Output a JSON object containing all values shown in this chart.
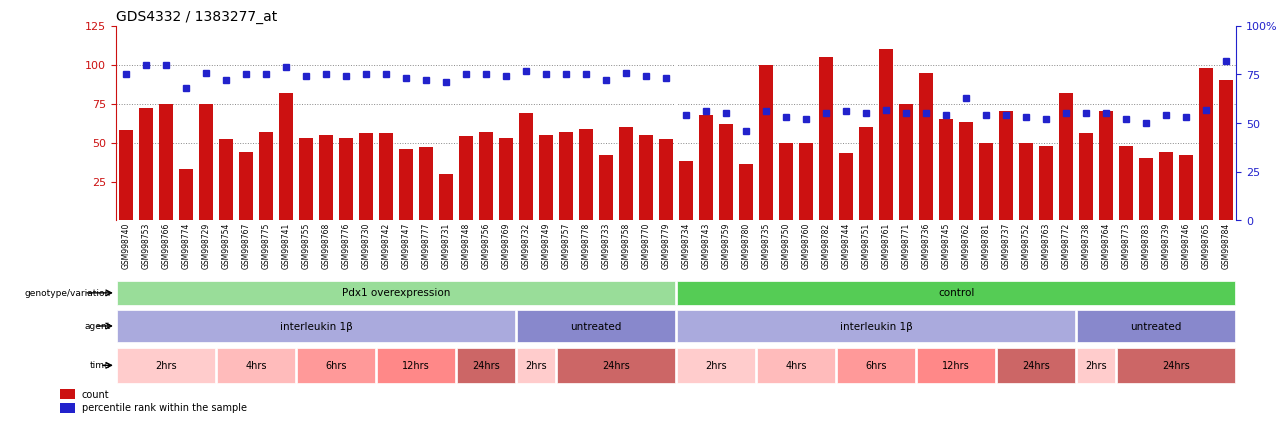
{
  "title": "GDS4332 / 1383277_at",
  "samples": [
    "GSM998740",
    "GSM998753",
    "GSM998766",
    "GSM998774",
    "GSM998729",
    "GSM998754",
    "GSM998767",
    "GSM998775",
    "GSM998741",
    "GSM998755",
    "GSM998768",
    "GSM998776",
    "GSM998730",
    "GSM998742",
    "GSM998747",
    "GSM998777",
    "GSM998731",
    "GSM998748",
    "GSM998756",
    "GSM998769",
    "GSM998732",
    "GSM998749",
    "GSM998757",
    "GSM998778",
    "GSM998733",
    "GSM998758",
    "GSM998770",
    "GSM998779",
    "GSM998734",
    "GSM998743",
    "GSM998759",
    "GSM998780",
    "GSM998735",
    "GSM998750",
    "GSM998760",
    "GSM998782",
    "GSM998744",
    "GSM998751",
    "GSM998761",
    "GSM998771",
    "GSM998736",
    "GSM998745",
    "GSM998762",
    "GSM998781",
    "GSM998737",
    "GSM998752",
    "GSM998763",
    "GSM998772",
    "GSM998738",
    "GSM998764",
    "GSM998773",
    "GSM998783",
    "GSM998739",
    "GSM998746",
    "GSM998765",
    "GSM998784"
  ],
  "counts": [
    58,
    72,
    75,
    33,
    75,
    52,
    44,
    57,
    82,
    53,
    55,
    53,
    56,
    56,
    46,
    47,
    30,
    54,
    57,
    53,
    69,
    55,
    57,
    59,
    42,
    60,
    55,
    52,
    38,
    68,
    62,
    36,
    100,
    50,
    50,
    105,
    43,
    60,
    110,
    75,
    95,
    65,
    63,
    50,
    70,
    50,
    48,
    82,
    56,
    70,
    48,
    40,
    44,
    42,
    98,
    90
  ],
  "percentiles": [
    75,
    80,
    80,
    68,
    76,
    72,
    75,
    75,
    79,
    74,
    75,
    74,
    75,
    75,
    73,
    72,
    71,
    75,
    75,
    74,
    77,
    75,
    75,
    75,
    72,
    76,
    74,
    73,
    54,
    56,
    55,
    46,
    56,
    53,
    52,
    55,
    56,
    55,
    57,
    55,
    55,
    54,
    63,
    54,
    54,
    53,
    52,
    55,
    55,
    55,
    52,
    50,
    54,
    53,
    57,
    82
  ],
  "left_ylim": [
    0,
    125
  ],
  "left_yticks": [
    25,
    50,
    75,
    100,
    125
  ],
  "right_ylim": [
    0,
    100
  ],
  "right_yticks": [
    0,
    25,
    50,
    75,
    100
  ],
  "right_yticklabels": [
    "0",
    "25",
    "50",
    "75",
    "100%"
  ],
  "bar_color": "#CC1111",
  "dot_color": "#2222CC",
  "grid_color": "#888888",
  "background_color": "#ffffff",
  "genotype_groups": [
    {
      "label": "Pdx1 overexpression",
      "start": 0,
      "end": 27,
      "color": "#99DD99"
    },
    {
      "label": "control",
      "start": 28,
      "end": 55,
      "color": "#55CC55"
    }
  ],
  "agent_groups": [
    {
      "label": "interleukin 1β",
      "start": 0,
      "end": 19,
      "color": "#AAAADD"
    },
    {
      "label": "untreated",
      "start": 20,
      "end": 27,
      "color": "#8888CC"
    },
    {
      "label": "interleukin 1β",
      "start": 28,
      "end": 47,
      "color": "#AAAADD"
    },
    {
      "label": "untreated",
      "start": 48,
      "end": 55,
      "color": "#8888CC"
    }
  ],
  "time_groups": [
    {
      "label": "2hrs",
      "start": 0,
      "end": 4,
      "color": "#FFCCCC"
    },
    {
      "label": "4hrs",
      "start": 5,
      "end": 8,
      "color": "#FFBBBB"
    },
    {
      "label": "6hrs",
      "start": 9,
      "end": 12,
      "color": "#FF9999"
    },
    {
      "label": "12hrs",
      "start": 13,
      "end": 16,
      "color": "#FF8888"
    },
    {
      "label": "24hrs",
      "start": 17,
      "end": 19,
      "color": "#CC6666"
    },
    {
      "label": "2hrs",
      "start": 20,
      "end": 21,
      "color": "#FFCCCC"
    },
    {
      "label": "24hrs",
      "start": 22,
      "end": 27,
      "color": "#CC6666"
    },
    {
      "label": "2hrs",
      "start": 28,
      "end": 31,
      "color": "#FFCCCC"
    },
    {
      "label": "4hrs",
      "start": 32,
      "end": 35,
      "color": "#FFBBBB"
    },
    {
      "label": "6hrs",
      "start": 36,
      "end": 39,
      "color": "#FF9999"
    },
    {
      "label": "12hrs",
      "start": 40,
      "end": 43,
      "color": "#FF8888"
    },
    {
      "label": "24hrs",
      "start": 44,
      "end": 47,
      "color": "#CC6666"
    },
    {
      "label": "2hrs",
      "start": 48,
      "end": 49,
      "color": "#FFCCCC"
    },
    {
      "label": "24hrs",
      "start": 50,
      "end": 55,
      "color": "#CC6666"
    }
  ],
  "left_label_color": "#CC1111",
  "right_label_color": "#2222CC",
  "title_color": "#000000",
  "legend_items": [
    {
      "label": "count",
      "color": "#CC1111",
      "marker": "s"
    },
    {
      "label": "percentile rank within the sample",
      "color": "#2222CC",
      "marker": "s"
    }
  ]
}
